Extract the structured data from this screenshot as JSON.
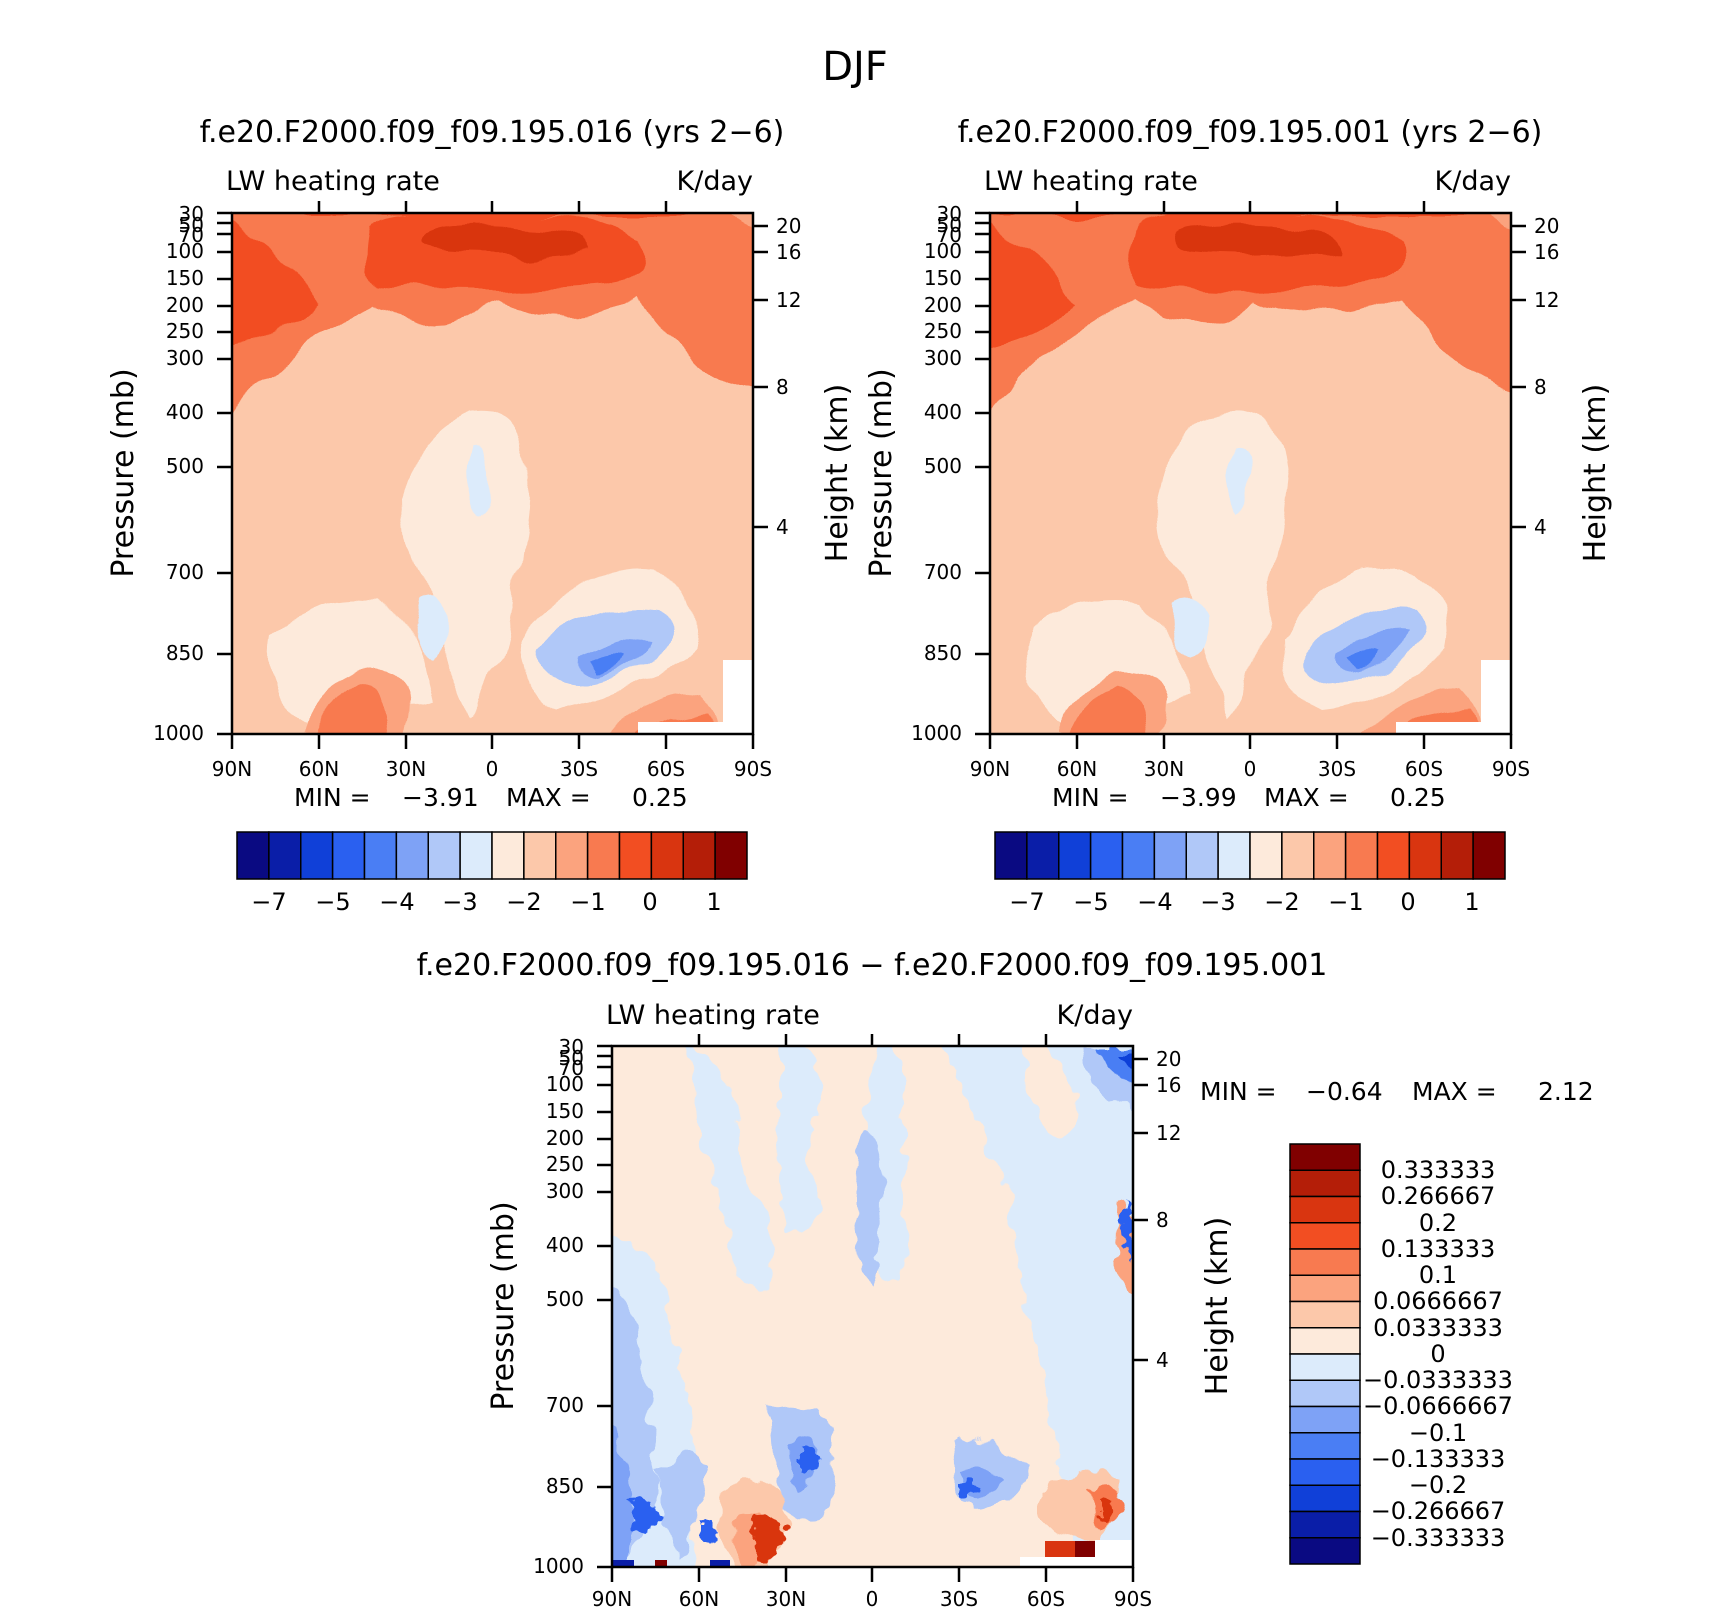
{
  "page_title": "DJF",
  "colors": {
    "top_scale": [
      "#0a0a82",
      "#0a1ea8",
      "#1040d8",
      "#2a60f0",
      "#4a7ef4",
      "#7ea2f6",
      "#b0c8f8",
      "#dcebfb",
      "#fdeadb",
      "#fcc8aa",
      "#fba37e",
      "#f87a50",
      "#f24e22",
      "#d93510",
      "#b41e08",
      "#800000"
    ],
    "diff_scale": [
      "#0a0a82",
      "#0a1ea8",
      "#1040d8",
      "#2a60f0",
      "#4a7ef4",
      "#7ea2f6",
      "#b0c8f8",
      "#dcebfb",
      "#fdeadb",
      "#fcc8aa",
      "#fba37e",
      "#f87a50",
      "#f24e22",
      "#d93510",
      "#b41e08",
      "#800000"
    ]
  },
  "chart_data": [
    {
      "id": "panel_016",
      "type": "heatmap",
      "title": "f.e20.F2000.f09_f09.195.016 (yrs 2-6)",
      "left_label": "LW heating rate",
      "right_label": "K/day",
      "ylabel": "Pressure (mb)",
      "y2label": "Height (km)",
      "x_ticks": [
        "90N",
        "60N",
        "30N",
        "0",
        "30S",
        "60S",
        "90S"
      ],
      "xlim": [
        90,
        -90
      ],
      "y_ticks": [
        "30",
        "50",
        "70",
        "100",
        "150",
        "200",
        "250",
        "300",
        "400",
        "500",
        "700",
        "850",
        "1000"
      ],
      "ylim": [
        30,
        1000
      ],
      "y2_ticks": [
        "20",
        "16",
        "12",
        "8",
        "4"
      ],
      "min_label": "MIN =",
      "min_value": "-3.91",
      "max_label": "MAX =",
      "max_value": "0.25",
      "colorbar_labels": [
        "-7",
        "-5",
        "-4",
        "-3",
        "-2",
        "-1",
        "0",
        "1"
      ]
    },
    {
      "id": "panel_001",
      "type": "heatmap",
      "title": "f.e20.F2000.f09_f09.195.001 (yrs 2-6)",
      "left_label": "LW heating rate",
      "right_label": "K/day",
      "ylabel": "Pressure (mb)",
      "y2label": "Height (km)",
      "x_ticks": [
        "90N",
        "60N",
        "30N",
        "0",
        "30S",
        "60S",
        "90S"
      ],
      "xlim": [
        90,
        -90
      ],
      "y_ticks": [
        "30",
        "50",
        "70",
        "100",
        "150",
        "200",
        "250",
        "300",
        "400",
        "500",
        "700",
        "850",
        "1000"
      ],
      "ylim": [
        30,
        1000
      ],
      "y2_ticks": [
        "20",
        "16",
        "12",
        "8",
        "4"
      ],
      "min_label": "MIN =",
      "min_value": "-3.99",
      "max_label": "MAX =",
      "max_value": "0.25",
      "colorbar_labels": [
        "-7",
        "-5",
        "-4",
        "-3",
        "-2",
        "-1",
        "0",
        "1"
      ]
    },
    {
      "id": "panel_diff",
      "type": "heatmap",
      "title": "f.e20.F2000.f09_f09.195.016 - f.e20.F2000.f09_f09.195.001",
      "left_label": "LW heating rate",
      "right_label": "K/day",
      "ylabel": "Pressure (mb)",
      "y2label": "Height (km)",
      "x_ticks": [
        "90N",
        "60N",
        "30N",
        "0",
        "30S",
        "60S",
        "90S"
      ],
      "xlim": [
        90,
        -90
      ],
      "y_ticks": [
        "30",
        "50",
        "70",
        "100",
        "150",
        "200",
        "250",
        "300",
        "400",
        "500",
        "700",
        "850",
        "1000"
      ],
      "ylim": [
        30,
        1000
      ],
      "y2_ticks": [
        "20",
        "16",
        "12",
        "8",
        "4"
      ],
      "min_label": "MIN =",
      "min_value": "-0.64",
      "max_label": "MAX =",
      "max_value": "2.12",
      "colorbar_labels": [
        "0.333333",
        "0.266667",
        "0.2",
        "0.133333",
        "0.1",
        "0.0666667",
        "0.0333333",
        "0",
        "-0.0333333",
        "-0.0666667",
        "-0.1",
        "-0.133333",
        "-0.2",
        "-0.266667",
        "-0.333333"
      ]
    }
  ]
}
